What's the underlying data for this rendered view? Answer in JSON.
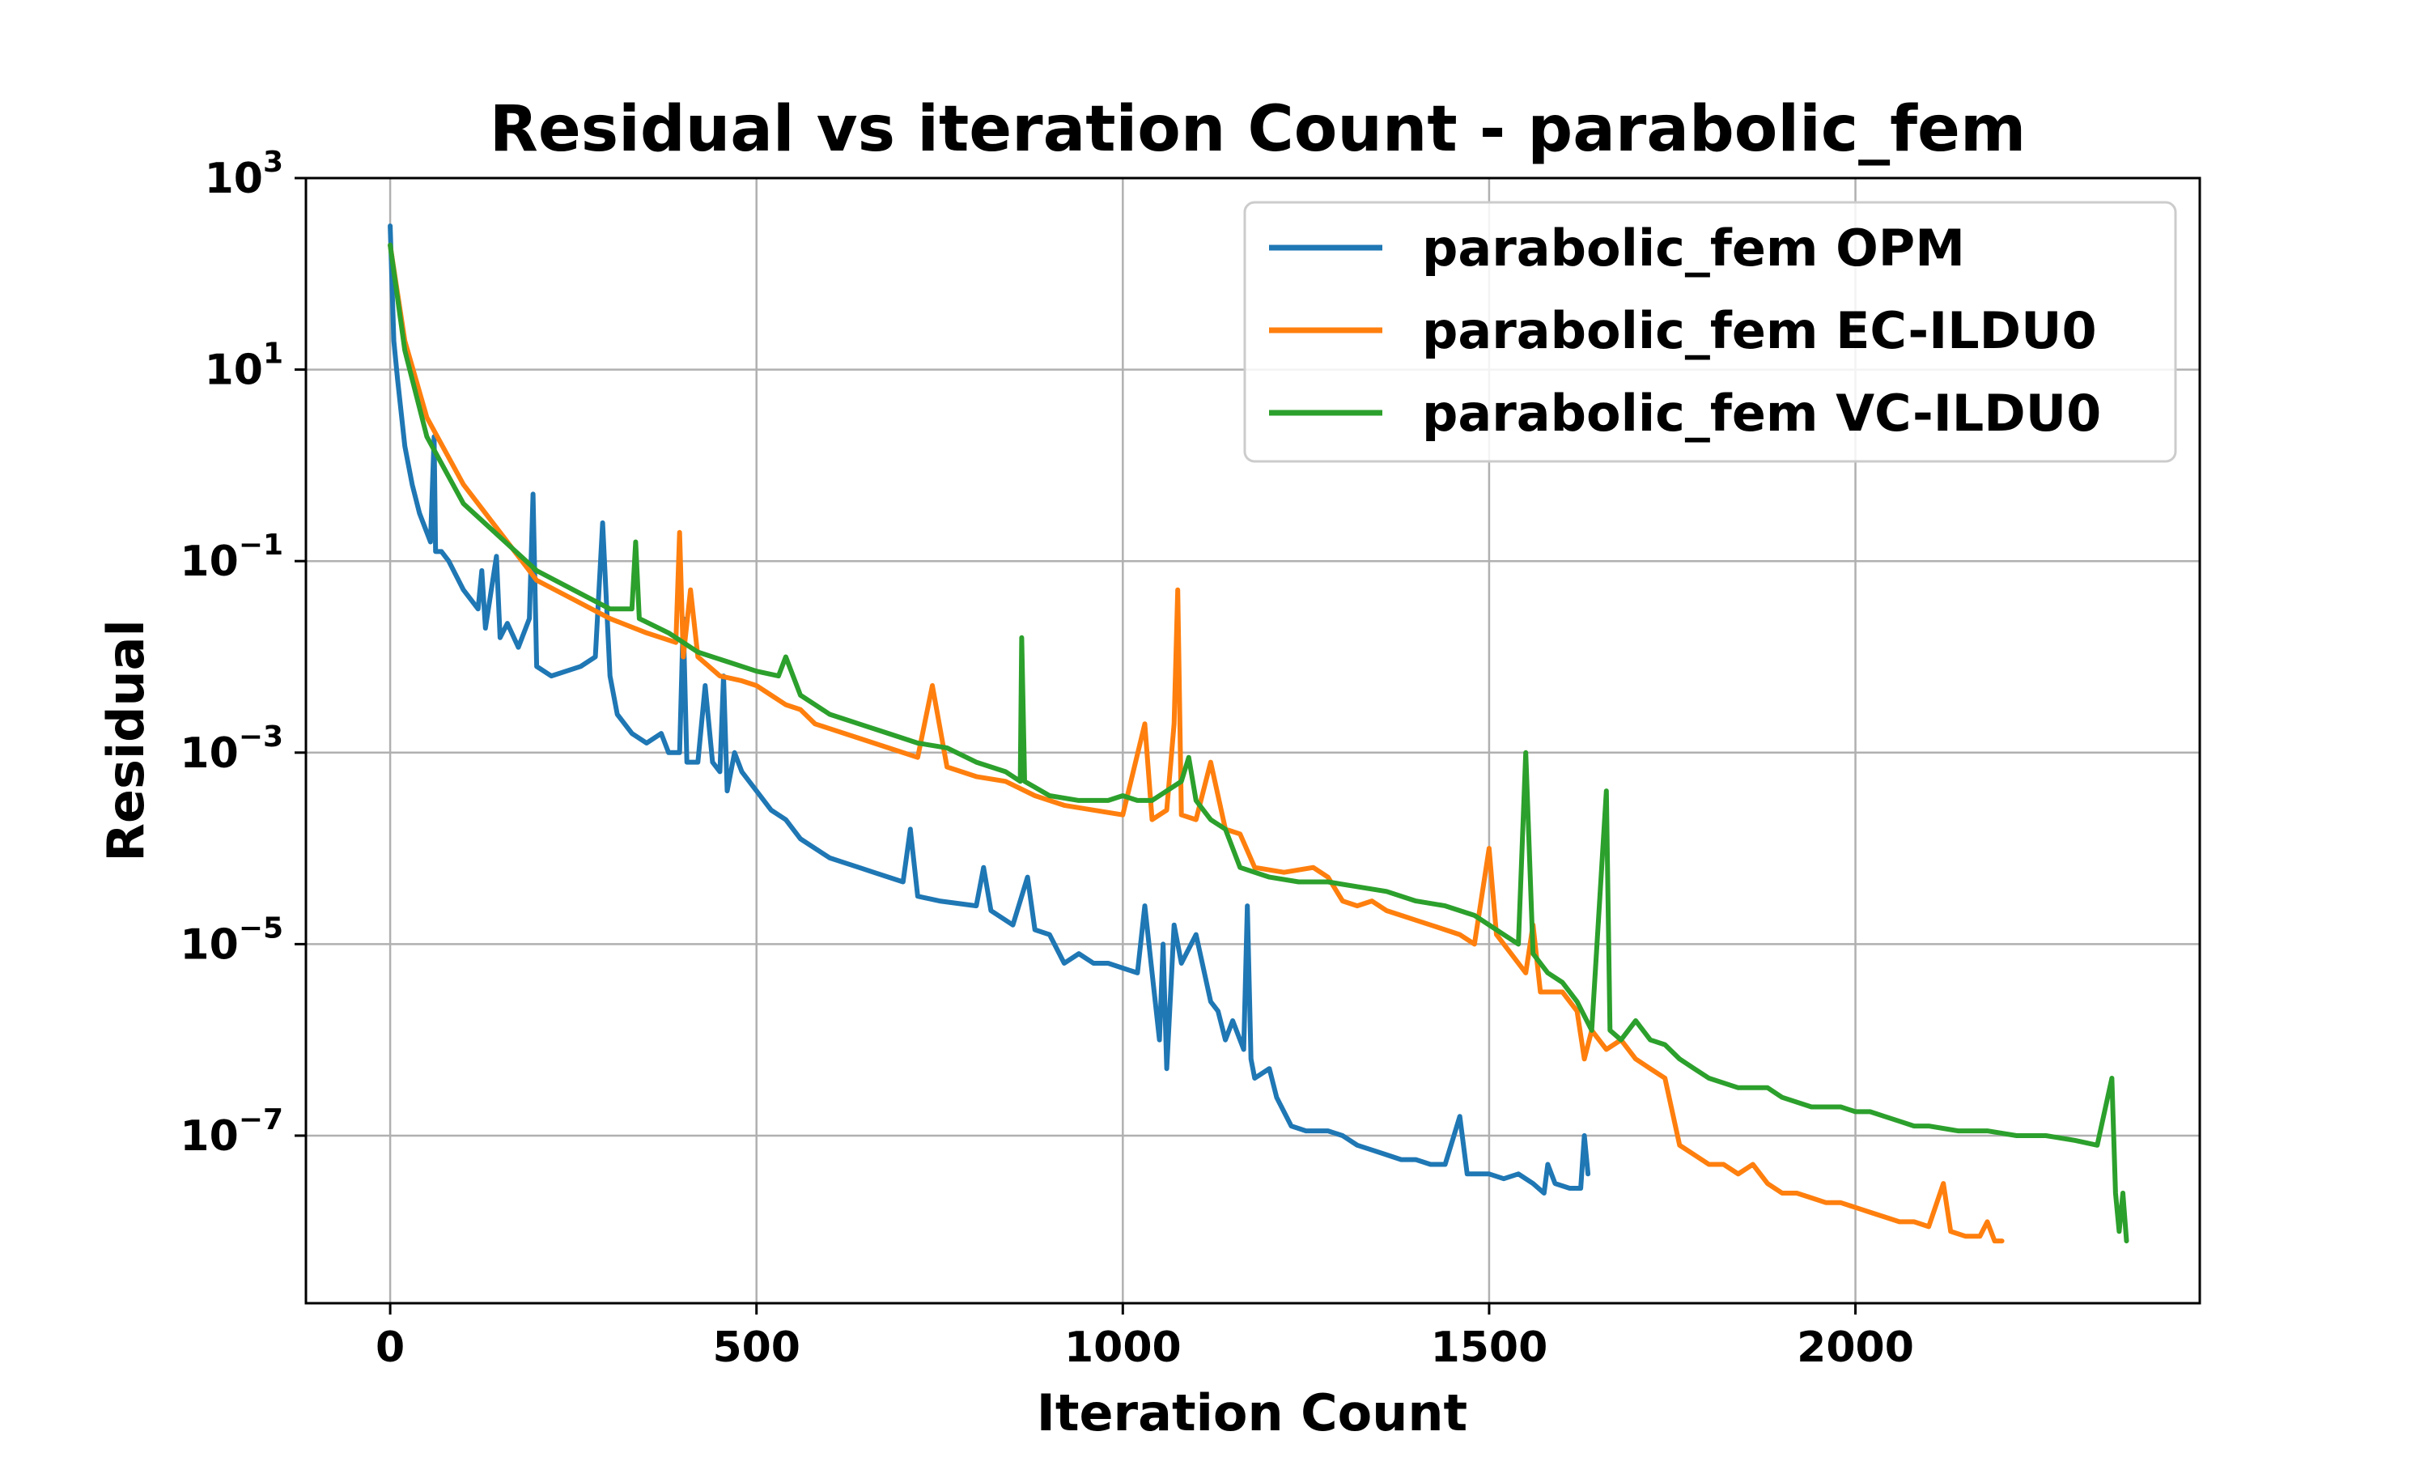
{
  "chart_data": {
    "type": "line",
    "title": "Residual vs iteration Count - parabolic_fem",
    "xlabel": "Iteration Count",
    "ylabel": "Residual",
    "xlim": [
      -115,
      2470
    ],
    "ylim_log10": [
      -8.75,
      3
    ],
    "yscale": "log",
    "grid": true,
    "legend_position": "top-right",
    "x_ticks": [
      {
        "value": 0,
        "label": "0"
      },
      {
        "value": 500,
        "label": "500"
      },
      {
        "value": 1000,
        "label": "1000"
      },
      {
        "value": 1500,
        "label": "1500"
      },
      {
        "value": 2000,
        "label": "2000"
      }
    ],
    "y_ticks": [
      {
        "exp": 3,
        "base": "10",
        "sup": "3"
      },
      {
        "exp": 1,
        "base": "10",
        "sup": "1"
      },
      {
        "exp": -1,
        "base": "10",
        "sup": "−1"
      },
      {
        "exp": -3,
        "base": "10",
        "sup": "−3"
      },
      {
        "exp": -5,
        "base": "10",
        "sup": "−5"
      },
      {
        "exp": -7,
        "base": "10",
        "sup": "−7"
      }
    ],
    "series": [
      {
        "name": "parabolic_fem OPM",
        "color": "#1f77b4",
        "log10_points": [
          [
            0,
            2.5
          ],
          [
            5,
            1.3
          ],
          [
            10,
            0.9
          ],
          [
            20,
            0.2
          ],
          [
            30,
            -0.2
          ],
          [
            40,
            -0.5
          ],
          [
            55,
            -0.8
          ],
          [
            60,
            0.3
          ],
          [
            62,
            -0.9
          ],
          [
            70,
            -0.9
          ],
          [
            80,
            -1.0
          ],
          [
            100,
            -1.3
          ],
          [
            120,
            -1.5
          ],
          [
            125,
            -1.1
          ],
          [
            130,
            -1.7
          ],
          [
            145,
            -0.95
          ],
          [
            150,
            -1.8
          ],
          [
            160,
            -1.65
          ],
          [
            175,
            -1.9
          ],
          [
            190,
            -1.6
          ],
          [
            195,
            -0.3
          ],
          [
            200,
            -2.1
          ],
          [
            220,
            -2.2
          ],
          [
            260,
            -2.1
          ],
          [
            280,
            -2.0
          ],
          [
            290,
            -0.6
          ],
          [
            300,
            -2.2
          ],
          [
            310,
            -2.6
          ],
          [
            330,
            -2.8
          ],
          [
            350,
            -2.9
          ],
          [
            370,
            -2.8
          ],
          [
            380,
            -3.0
          ],
          [
            395,
            -3.0
          ],
          [
            400,
            -1.6
          ],
          [
            405,
            -3.1
          ],
          [
            420,
            -3.1
          ],
          [
            430,
            -2.3
          ],
          [
            440,
            -3.1
          ],
          [
            450,
            -3.2
          ],
          [
            455,
            -2.2
          ],
          [
            460,
            -3.4
          ],
          [
            470,
            -3.0
          ],
          [
            480,
            -3.2
          ],
          [
            500,
            -3.4
          ],
          [
            520,
            -3.6
          ],
          [
            540,
            -3.7
          ],
          [
            560,
            -3.9
          ],
          [
            580,
            -4.0
          ],
          [
            600,
            -4.1
          ],
          [
            620,
            -4.15
          ],
          [
            640,
            -4.2
          ],
          [
            660,
            -4.25
          ],
          [
            680,
            -4.3
          ],
          [
            700,
            -4.35
          ],
          [
            710,
            -3.8
          ],
          [
            720,
            -4.5
          ],
          [
            750,
            -4.55
          ],
          [
            800,
            -4.6
          ],
          [
            810,
            -4.2
          ],
          [
            820,
            -4.65
          ],
          [
            850,
            -4.8
          ],
          [
            870,
            -4.3
          ],
          [
            880,
            -4.85
          ],
          [
            900,
            -4.9
          ],
          [
            920,
            -5.2
          ],
          [
            940,
            -5.1
          ],
          [
            960,
            -5.2
          ],
          [
            980,
            -5.2
          ],
          [
            1000,
            -5.25
          ],
          [
            1020,
            -5.3
          ],
          [
            1030,
            -4.6
          ],
          [
            1040,
            -5.3
          ],
          [
            1050,
            -6.0
          ],
          [
            1055,
            -5.0
          ],
          [
            1060,
            -6.3
          ],
          [
            1070,
            -4.8
          ],
          [
            1080,
            -5.2
          ],
          [
            1100,
            -4.9
          ],
          [
            1120,
            -5.6
          ],
          [
            1130,
            -5.7
          ],
          [
            1140,
            -6.0
          ],
          [
            1150,
            -5.8
          ],
          [
            1165,
            -6.1
          ],
          [
            1170,
            -4.6
          ],
          [
            1175,
            -6.2
          ],
          [
            1180,
            -6.4
          ],
          [
            1200,
            -6.3
          ],
          [
            1210,
            -6.6
          ],
          [
            1230,
            -6.9
          ],
          [
            1250,
            -6.95
          ],
          [
            1280,
            -6.95
          ],
          [
            1300,
            -7.0
          ],
          [
            1320,
            -7.1
          ],
          [
            1340,
            -7.15
          ],
          [
            1360,
            -7.2
          ],
          [
            1380,
            -7.25
          ],
          [
            1400,
            -7.25
          ],
          [
            1420,
            -7.3
          ],
          [
            1440,
            -7.3
          ],
          [
            1460,
            -6.8
          ],
          [
            1470,
            -7.4
          ],
          [
            1500,
            -7.4
          ],
          [
            1520,
            -7.45
          ],
          [
            1540,
            -7.4
          ],
          [
            1560,
            -7.5
          ],
          [
            1575,
            -7.6
          ],
          [
            1580,
            -7.3
          ],
          [
            1590,
            -7.5
          ],
          [
            1610,
            -7.55
          ],
          [
            1625,
            -7.55
          ],
          [
            1630,
            -7.0
          ],
          [
            1635,
            -7.4
          ]
        ]
      },
      {
        "name": "parabolic_fem EC-ILDU0",
        "color": "#ff7f0e",
        "log10_points": [
          [
            0,
            2.3
          ],
          [
            20,
            1.3
          ],
          [
            50,
            0.5
          ],
          [
            100,
            -0.2
          ],
          [
            150,
            -0.7
          ],
          [
            200,
            -1.2
          ],
          [
            250,
            -1.4
          ],
          [
            300,
            -1.6
          ],
          [
            350,
            -1.75
          ],
          [
            390,
            -1.85
          ],
          [
            395,
            -0.7
          ],
          [
            400,
            -2.0
          ],
          [
            410,
            -1.3
          ],
          [
            420,
            -2.0
          ],
          [
            450,
            -2.2
          ],
          [
            480,
            -2.25
          ],
          [
            500,
            -2.3
          ],
          [
            520,
            -2.4
          ],
          [
            540,
            -2.5
          ],
          [
            560,
            -2.55
          ],
          [
            580,
            -2.7
          ],
          [
            600,
            -2.75
          ],
          [
            640,
            -2.85
          ],
          [
            680,
            -2.95
          ],
          [
            720,
            -3.05
          ],
          [
            740,
            -2.3
          ],
          [
            760,
            -3.15
          ],
          [
            800,
            -3.25
          ],
          [
            840,
            -3.3
          ],
          [
            880,
            -3.45
          ],
          [
            920,
            -3.55
          ],
          [
            960,
            -3.6
          ],
          [
            1000,
            -3.65
          ],
          [
            1030,
            -2.7
          ],
          [
            1040,
            -3.7
          ],
          [
            1060,
            -3.6
          ],
          [
            1070,
            -2.7
          ],
          [
            1075,
            -1.3
          ],
          [
            1080,
            -3.65
          ],
          [
            1100,
            -3.7
          ],
          [
            1120,
            -3.1
          ],
          [
            1140,
            -3.8
          ],
          [
            1160,
            -3.85
          ],
          [
            1180,
            -4.2
          ],
          [
            1220,
            -4.25
          ],
          [
            1260,
            -4.2
          ],
          [
            1280,
            -4.3
          ],
          [
            1300,
            -4.55
          ],
          [
            1320,
            -4.6
          ],
          [
            1340,
            -4.55
          ],
          [
            1360,
            -4.65
          ],
          [
            1380,
            -4.7
          ],
          [
            1400,
            -4.75
          ],
          [
            1420,
            -4.8
          ],
          [
            1440,
            -4.85
          ],
          [
            1460,
            -4.9
          ],
          [
            1480,
            -5.0
          ],
          [
            1500,
            -4.0
          ],
          [
            1510,
            -4.9
          ],
          [
            1530,
            -5.1
          ],
          [
            1550,
            -5.3
          ],
          [
            1560,
            -4.8
          ],
          [
            1570,
            -5.5
          ],
          [
            1580,
            -5.5
          ],
          [
            1600,
            -5.5
          ],
          [
            1620,
            -5.7
          ],
          [
            1630,
            -6.2
          ],
          [
            1640,
            -5.9
          ],
          [
            1660,
            -6.1
          ],
          [
            1680,
            -6.0
          ],
          [
            1700,
            -6.2
          ],
          [
            1720,
            -6.3
          ],
          [
            1740,
            -6.4
          ],
          [
            1760,
            -7.1
          ],
          [
            1780,
            -7.2
          ],
          [
            1800,
            -7.3
          ],
          [
            1820,
            -7.3
          ],
          [
            1840,
            -7.4
          ],
          [
            1860,
            -7.3
          ],
          [
            1880,
            -7.5
          ],
          [
            1900,
            -7.6
          ],
          [
            1920,
            -7.6
          ],
          [
            1940,
            -7.65
          ],
          [
            1960,
            -7.7
          ],
          [
            1980,
            -7.7
          ],
          [
            2000,
            -7.75
          ],
          [
            2020,
            -7.8
          ],
          [
            2040,
            -7.85
          ],
          [
            2060,
            -7.9
          ],
          [
            2080,
            -7.9
          ],
          [
            2100,
            -7.95
          ],
          [
            2120,
            -7.5
          ],
          [
            2130,
            -8.0
          ],
          [
            2150,
            -8.05
          ],
          [
            2170,
            -8.05
          ],
          [
            2180,
            -7.9
          ],
          [
            2190,
            -8.1
          ],
          [
            2200,
            -8.1
          ]
        ]
      },
      {
        "name": "parabolic_fem VC-ILDU0",
        "color": "#2ca02c",
        "log10_points": [
          [
            0,
            2.3
          ],
          [
            20,
            1.2
          ],
          [
            50,
            0.3
          ],
          [
            100,
            -0.4
          ],
          [
            150,
            -0.75
          ],
          [
            200,
            -1.1
          ],
          [
            250,
            -1.3
          ],
          [
            300,
            -1.5
          ],
          [
            330,
            -1.5
          ],
          [
            335,
            -0.8
          ],
          [
            340,
            -1.6
          ],
          [
            380,
            -1.75
          ],
          [
            420,
            -1.95
          ],
          [
            460,
            -2.05
          ],
          [
            500,
            -2.15
          ],
          [
            530,
            -2.2
          ],
          [
            540,
            -2.0
          ],
          [
            560,
            -2.4
          ],
          [
            580,
            -2.5
          ],
          [
            600,
            -2.6
          ],
          [
            640,
            -2.7
          ],
          [
            680,
            -2.8
          ],
          [
            720,
            -2.9
          ],
          [
            760,
            -2.95
          ],
          [
            800,
            -3.1
          ],
          [
            840,
            -3.2
          ],
          [
            860,
            -3.3
          ],
          [
            862,
            -1.8
          ],
          [
            866,
            -3.3
          ],
          [
            900,
            -3.45
          ],
          [
            940,
            -3.5
          ],
          [
            980,
            -3.5
          ],
          [
            1000,
            -3.45
          ],
          [
            1020,
            -3.5
          ],
          [
            1040,
            -3.5
          ],
          [
            1060,
            -3.4
          ],
          [
            1080,
            -3.3
          ],
          [
            1090,
            -3.05
          ],
          [
            1100,
            -3.5
          ],
          [
            1120,
            -3.7
          ],
          [
            1140,
            -3.8
          ],
          [
            1160,
            -4.2
          ],
          [
            1200,
            -4.3
          ],
          [
            1240,
            -4.35
          ],
          [
            1280,
            -4.35
          ],
          [
            1320,
            -4.4
          ],
          [
            1360,
            -4.45
          ],
          [
            1400,
            -4.55
          ],
          [
            1440,
            -4.6
          ],
          [
            1480,
            -4.7
          ],
          [
            1500,
            -4.8
          ],
          [
            1520,
            -4.9
          ],
          [
            1540,
            -5.0
          ],
          [
            1550,
            -3.0
          ],
          [
            1560,
            -5.1
          ],
          [
            1580,
            -5.3
          ],
          [
            1600,
            -5.4
          ],
          [
            1620,
            -5.6
          ],
          [
            1640,
            -5.9
          ],
          [
            1660,
            -3.4
          ],
          [
            1665,
            -5.9
          ],
          [
            1680,
            -6.0
          ],
          [
            1700,
            -5.8
          ],
          [
            1720,
            -6.0
          ],
          [
            1740,
            -6.05
          ],
          [
            1760,
            -6.2
          ],
          [
            1780,
            -6.3
          ],
          [
            1800,
            -6.4
          ],
          [
            1840,
            -6.5
          ],
          [
            1880,
            -6.5
          ],
          [
            1900,
            -6.6
          ],
          [
            1940,
            -6.7
          ],
          [
            1980,
            -6.7
          ],
          [
            2000,
            -6.75
          ],
          [
            2020,
            -6.75
          ],
          [
            2040,
            -6.8
          ],
          [
            2060,
            -6.85
          ],
          [
            2080,
            -6.9
          ],
          [
            2100,
            -6.9
          ],
          [
            2140,
            -6.95
          ],
          [
            2180,
            -6.95
          ],
          [
            2220,
            -7.0
          ],
          [
            2260,
            -7.0
          ],
          [
            2300,
            -7.05
          ],
          [
            2330,
            -7.1
          ],
          [
            2350,
            -6.4
          ],
          [
            2355,
            -7.6
          ],
          [
            2360,
            -8.0
          ],
          [
            2365,
            -7.6
          ],
          [
            2370,
            -8.1
          ]
        ]
      }
    ]
  }
}
